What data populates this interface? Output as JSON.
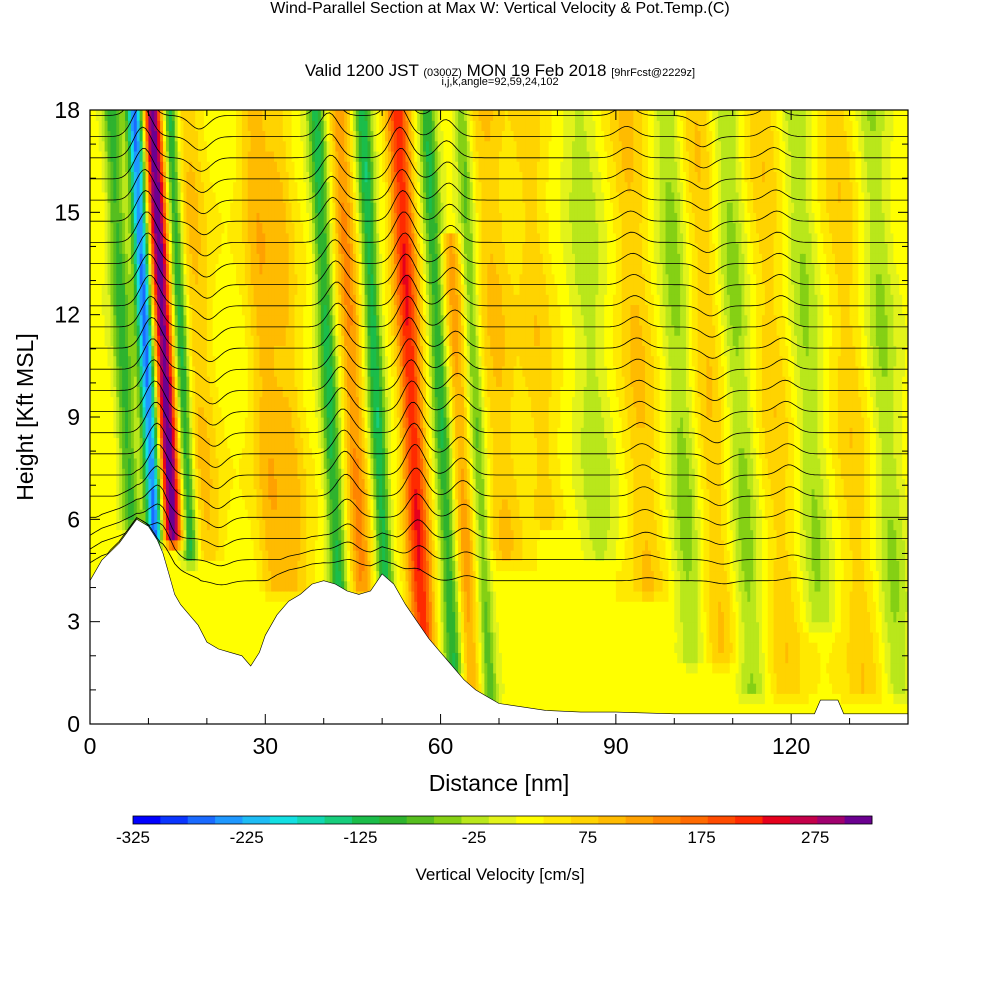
{
  "header": {
    "title": "Wind-Parallel Section at Max W: Vertical Velocity & Pot.Temp.",
    "copyright_mark": "(C)",
    "valid_prefix": "Valid 1200 JST",
    "valid_utc": "(0300Z)",
    "valid_date": "MON 19 Feb 2018",
    "forecast": "[9hrFcst@2229z]",
    "indices": "i,j,k,angle=92,59,24,102"
  },
  "colors": {
    "colorbar": [
      "#0000ff",
      "#0a35ff",
      "#1a6aff",
      "#1f98ff",
      "#1ebcf5",
      "#13dfe3",
      "#12d7b2",
      "#17cd7c",
      "#1bbd4a",
      "#2eb32e",
      "#56be1f",
      "#85d014",
      "#b9e71b",
      "#e2f31a",
      "#ffff00",
      "#ffe900",
      "#ffd300",
      "#ffbb00",
      "#ffa100",
      "#ff8500",
      "#ff6a00",
      "#ff4b00",
      "#ff2a00",
      "#e6001c",
      "#c4004a",
      "#a0006e",
      "#6b0090"
    ],
    "terrain": "#ffffff",
    "isentrope": "#000000"
  },
  "chart_data": {
    "type": "heatmap",
    "xlabel": "Distance [nm]",
    "ylabel": "Height [Kft MSL]",
    "xlim": [
      0,
      140
    ],
    "ylim": [
      0,
      18
    ],
    "x_ticks": [
      0,
      30,
      60,
      90,
      120
    ],
    "y_ticks": [
      0,
      3,
      6,
      9,
      12,
      15,
      18
    ],
    "colorbar_label": "Vertical Velocity [cm/s]",
    "colorbar_ticks": [
      -325,
      -225,
      -125,
      -25,
      75,
      175,
      275
    ],
    "colorbar_range": [
      -325,
      325
    ],
    "terrain_height_kft": [
      [
        0,
        4.2
      ],
      [
        2,
        4.8
      ],
      [
        5,
        5.3
      ],
      [
        8,
        6.0
      ],
      [
        10,
        5.8
      ],
      [
        11.5,
        5.4
      ],
      [
        12.5,
        5.0
      ],
      [
        13.5,
        4.4
      ],
      [
        14.5,
        3.8
      ],
      [
        15.5,
        3.5
      ],
      [
        17,
        3.2
      ],
      [
        18.5,
        2.9
      ],
      [
        20,
        2.4
      ],
      [
        22,
        2.2
      ],
      [
        24,
        2.1
      ],
      [
        26,
        2.0
      ],
      [
        27.5,
        1.7
      ],
      [
        29,
        2.1
      ],
      [
        30,
        2.6
      ],
      [
        32,
        3.2
      ],
      [
        34,
        3.6
      ],
      [
        36,
        3.8
      ],
      [
        38,
        4.1
      ],
      [
        40,
        4.2
      ],
      [
        42,
        4.1
      ],
      [
        44,
        3.9
      ],
      [
        46,
        3.8
      ],
      [
        48,
        3.9
      ],
      [
        50,
        4.4
      ],
      [
        52,
        4.1
      ],
      [
        54,
        3.5
      ],
      [
        56,
        3.0
      ],
      [
        58,
        2.5
      ],
      [
        60,
        2.1
      ],
      [
        62,
        1.7
      ],
      [
        64,
        1.3
      ],
      [
        66,
        1.0
      ],
      [
        68,
        0.8
      ],
      [
        70,
        0.6
      ],
      [
        74,
        0.5
      ],
      [
        78,
        0.4
      ],
      [
        84,
        0.35
      ],
      [
        90,
        0.35
      ],
      [
        100,
        0.3
      ],
      [
        110,
        0.3
      ],
      [
        118,
        0.3
      ],
      [
        124,
        0.3
      ],
      [
        125,
        0.7
      ],
      [
        128,
        0.7
      ],
      [
        129,
        0.3
      ],
      [
        140,
        0.3
      ]
    ],
    "vertical_velocity_features": [
      {
        "x": 14,
        "w": 1.6,
        "amp": 300,
        "zmin": 5.5,
        "zmax": 18
      },
      {
        "x": 11,
        "w": 1.4,
        "amp": -290,
        "zmin": 5.5,
        "zmax": 18
      },
      {
        "x": 7,
        "w": 1.6,
        "amp": -120,
        "zmin": 6,
        "zmax": 18
      },
      {
        "x": 17,
        "w": 1.2,
        "amp": -150,
        "zmin": 5,
        "zmax": 18
      },
      {
        "x": 20,
        "w": 2.5,
        "amp": 60,
        "zmin": 5,
        "zmax": 18
      },
      {
        "x": 31,
        "w": 2.5,
        "amp": 70,
        "zmin": 4,
        "zmax": 18
      },
      {
        "x": 35,
        "w": 2.5,
        "amp": 60,
        "zmin": 4,
        "zmax": 18
      },
      {
        "x": 42,
        "w": 1.5,
        "amp": -140,
        "zmin": 4,
        "zmax": 18
      },
      {
        "x": 46,
        "w": 1.8,
        "amp": 110,
        "zmin": 4,
        "zmax": 18
      },
      {
        "x": 50,
        "w": 1.4,
        "amp": -150,
        "zmin": 4,
        "zmax": 18
      },
      {
        "x": 56,
        "w": 2.0,
        "amp": 200,
        "zmin": 1.5,
        "zmax": 18
      },
      {
        "x": 61,
        "w": 1.5,
        "amp": -130,
        "zmin": 1.5,
        "zmax": 18
      },
      {
        "x": 64,
        "w": 1.6,
        "amp": 90,
        "zmin": 1.0,
        "zmax": 14
      },
      {
        "x": 67,
        "w": 1.3,
        "amp": -90,
        "zmin": 0.5,
        "zmax": 18
      },
      {
        "x": 71,
        "w": 3.0,
        "amp": 60,
        "zmin": 5,
        "zmax": 18
      },
      {
        "x": 78,
        "w": 3.0,
        "amp": 50,
        "zmin": 6,
        "zmax": 18
      },
      {
        "x": 87,
        "w": 3.0,
        "amp": -50,
        "zmin": 5,
        "zmax": 18
      },
      {
        "x": 95,
        "w": 3.0,
        "amp": 60,
        "zmin": 4,
        "zmax": 18
      },
      {
        "x": 102,
        "w": 2.5,
        "amp": -70,
        "zmin": 2,
        "zmax": 18
      },
      {
        "x": 107,
        "w": 3.0,
        "amp": 55,
        "zmin": 2,
        "zmax": 18
      },
      {
        "x": 112,
        "w": 2.5,
        "amp": -70,
        "zmin": 1,
        "zmax": 18
      },
      {
        "x": 118,
        "w": 3.0,
        "amp": 50,
        "zmin": 1,
        "zmax": 18
      },
      {
        "x": 124,
        "w": 2.5,
        "amp": -60,
        "zmin": 3,
        "zmax": 18
      },
      {
        "x": 131,
        "w": 3.0,
        "amp": 50,
        "zmin": 1,
        "zmax": 18
      },
      {
        "x": 137,
        "w": 2.5,
        "amp": -60,
        "zmin": 1,
        "zmax": 18
      }
    ]
  }
}
